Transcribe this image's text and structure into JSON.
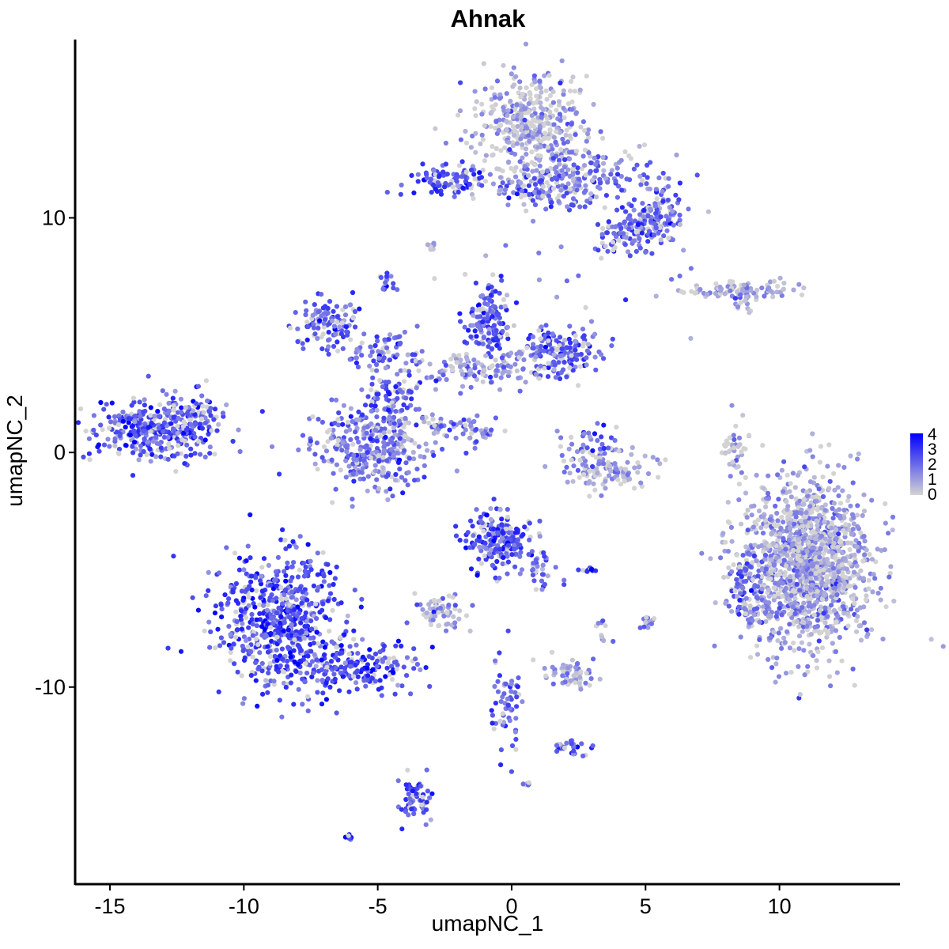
{
  "chart_data": {
    "type": "scatter",
    "title": "Ahnak",
    "xlabel": "umapNC_1",
    "ylabel": "umapNC_2",
    "xlim": [
      -16.3,
      14.5
    ],
    "ylim": [
      -18.4,
      17.6
    ],
    "x_ticks": [
      -15,
      -10,
      -5,
      0,
      5,
      10
    ],
    "y_ticks": [
      -10,
      0,
      10
    ],
    "grid": false,
    "legend": {
      "position": "right",
      "title": "",
      "breaks": [
        0,
        1,
        2,
        3,
        4
      ],
      "low_color": "#d3d3d3",
      "high_color": "#0000ff"
    },
    "clusters": [
      {
        "cx": 0.7,
        "cy": 14.0,
        "sx": 1.0,
        "sy": 1.1,
        "n": 420,
        "expr": 0.7,
        "seed": 11
      },
      {
        "cx": 2.8,
        "cy": 11.8,
        "sx": 1.6,
        "sy": 0.7,
        "n": 200,
        "expr": 1.6,
        "seed": 12
      },
      {
        "cx": 5.2,
        "cy": 9.9,
        "sx": 0.6,
        "sy": 0.6,
        "n": 160,
        "expr": 2.0,
        "seed": 13
      },
      {
        "cx": 4.0,
        "cy": 9.2,
        "sx": 0.5,
        "sy": 0.5,
        "n": 50,
        "expr": 1.8,
        "seed": 14
      },
      {
        "cx": -2.4,
        "cy": 11.6,
        "sx": 0.7,
        "sy": 0.35,
        "n": 90,
        "expr": 2.5,
        "seed": 15
      },
      {
        "cx": 0.9,
        "cy": 11.1,
        "sx": 1.0,
        "sy": 0.35,
        "n": 70,
        "expr": 2.2,
        "seed": 16
      },
      {
        "cx": -3.0,
        "cy": 8.8,
        "sx": 0.15,
        "sy": 0.1,
        "n": 8,
        "expr": 0.8,
        "seed": 17
      },
      {
        "cx": -4.6,
        "cy": 7.3,
        "sx": 0.15,
        "sy": 0.2,
        "n": 15,
        "expr": 2.5,
        "seed": 18
      },
      {
        "cx": 8.5,
        "cy": 6.9,
        "sx": 1.1,
        "sy": 0.2,
        "n": 100,
        "expr": 0.7,
        "seed": 19
      },
      {
        "cx": 8.6,
        "cy": 6.1,
        "sx": 0.3,
        "sy": 0.2,
        "n": 10,
        "expr": 0.5,
        "seed": 20
      },
      {
        "cx": -6.8,
        "cy": 5.5,
        "sx": 0.6,
        "sy": 0.5,
        "n": 110,
        "expr": 2.4,
        "seed": 21
      },
      {
        "cx": -4.8,
        "cy": 4.3,
        "sx": 0.8,
        "sy": 0.4,
        "n": 60,
        "expr": 2.1,
        "seed": 22
      },
      {
        "cx": -0.8,
        "cy": 5.6,
        "sx": 0.5,
        "sy": 0.7,
        "n": 130,
        "expr": 2.4,
        "seed": 23
      },
      {
        "cx": 1.7,
        "cy": 4.3,
        "sx": 0.8,
        "sy": 0.5,
        "n": 170,
        "expr": 2.3,
        "seed": 24
      },
      {
        "cx": -1.2,
        "cy": 3.6,
        "sx": 1.6,
        "sy": 0.4,
        "n": 130,
        "expr": 1.2,
        "seed": 25
      },
      {
        "cx": -4.5,
        "cy": 2.2,
        "sx": 0.6,
        "sy": 0.8,
        "n": 90,
        "expr": 2.3,
        "seed": 26
      },
      {
        "cx": -5.2,
        "cy": 0.3,
        "sx": 1.2,
        "sy": 1.0,
        "n": 340,
        "expr": 1.7,
        "seed": 27
      },
      {
        "cx": -1.8,
        "cy": 1.1,
        "sx": 0.6,
        "sy": 0.4,
        "n": 30,
        "expr": 1.6,
        "seed": 28
      },
      {
        "cx": -13.2,
        "cy": 1.0,
        "sx": 1.2,
        "sy": 0.7,
        "n": 360,
        "expr": 2.4,
        "seed": 29
      },
      {
        "cx": -11.8,
        "cy": 1.7,
        "sx": 0.5,
        "sy": 0.4,
        "n": 40,
        "expr": 2.0,
        "seed": 30
      },
      {
        "cx": 3.4,
        "cy": -0.6,
        "sx": 0.9,
        "sy": 0.5,
        "n": 130,
        "expr": 0.9,
        "seed": 31
      },
      {
        "cx": 3.2,
        "cy": 0.7,
        "sx": 0.3,
        "sy": 0.4,
        "n": 20,
        "expr": 2.4,
        "seed": 32
      },
      {
        "cx": 8.3,
        "cy": 0.2,
        "sx": 0.25,
        "sy": 0.7,
        "n": 40,
        "expr": 0.6,
        "seed": 33
      },
      {
        "cx": 11.0,
        "cy": -4.8,
        "sx": 1.2,
        "sy": 1.8,
        "n": 1400,
        "expr": 0.9,
        "seed": 34
      },
      {
        "cx": 8.7,
        "cy": -5.5,
        "sx": 0.3,
        "sy": 0.6,
        "n": 60,
        "expr": 2.1,
        "seed": 35
      },
      {
        "cx": 9.0,
        "cy": -6.8,
        "sx": 0.5,
        "sy": 0.3,
        "n": 50,
        "expr": 1.5,
        "seed": 36
      },
      {
        "cx": -8.6,
        "cy": -7.2,
        "sx": 1.1,
        "sy": 1.5,
        "n": 620,
        "expr": 2.5,
        "seed": 37
      },
      {
        "cx": -5.9,
        "cy": -9.2,
        "sx": 1.2,
        "sy": 0.6,
        "n": 190,
        "expr": 2.5,
        "seed": 38
      },
      {
        "cx": -0.5,
        "cy": -3.7,
        "sx": 0.6,
        "sy": 0.6,
        "n": 200,
        "expr": 2.4,
        "seed": 39
      },
      {
        "cx": 0.9,
        "cy": -5.0,
        "sx": 0.4,
        "sy": 0.5,
        "n": 40,
        "expr": 2.2,
        "seed": 40
      },
      {
        "cx": -2.6,
        "cy": -6.9,
        "sx": 0.5,
        "sy": 0.4,
        "n": 60,
        "expr": 0.8,
        "seed": 41
      },
      {
        "cx": 2.9,
        "cy": -5.0,
        "sx": 0.2,
        "sy": 0.08,
        "n": 12,
        "expr": 2.8,
        "seed": 42
      },
      {
        "cx": 3.4,
        "cy": -7.6,
        "sx": 0.2,
        "sy": 0.3,
        "n": 10,
        "expr": 1.0,
        "seed": 43
      },
      {
        "cx": 5.0,
        "cy": -7.3,
        "sx": 0.2,
        "sy": 0.2,
        "n": 12,
        "expr": 1.6,
        "seed": 44
      },
      {
        "cx": 2.2,
        "cy": -9.4,
        "sx": 0.5,
        "sy": 0.3,
        "n": 60,
        "expr": 1.0,
        "seed": 45
      },
      {
        "cx": -0.2,
        "cy": -10.7,
        "sx": 0.3,
        "sy": 1.1,
        "n": 60,
        "expr": 2.0,
        "seed": 46
      },
      {
        "cx": 2.2,
        "cy": -12.6,
        "sx": 0.4,
        "sy": 0.2,
        "n": 30,
        "expr": 2.0,
        "seed": 47
      },
      {
        "cx": -3.6,
        "cy": -14.8,
        "sx": 0.3,
        "sy": 0.5,
        "n": 60,
        "expr": 2.5,
        "seed": 48
      },
      {
        "cx": 0.6,
        "cy": -14.1,
        "sx": 0.08,
        "sy": 0.08,
        "n": 6,
        "expr": 2.0,
        "seed": 49
      },
      {
        "cx": -6.1,
        "cy": -16.4,
        "sx": 0.08,
        "sy": 0.06,
        "n": 8,
        "expr": 4.0,
        "seed": 50
      },
      {
        "cx": -2.0,
        "cy": 1.0,
        "sx": 0.7,
        "sy": 0.25,
        "n": 25,
        "expr": 1.5,
        "seed": 51
      },
      {
        "cx": 1.2,
        "cy": 7.0,
        "sx": 2.5,
        "sy": 1.3,
        "n": 30,
        "expr": 1.5,
        "seed": 52
      }
    ]
  }
}
